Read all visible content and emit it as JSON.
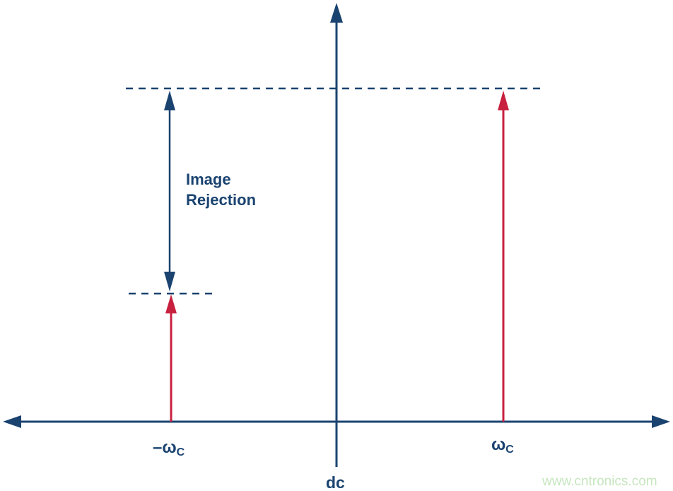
{
  "labels": {
    "image_rejection_line1": "Image",
    "image_rejection_line2": "Rejection",
    "neg_wc_main": "–ω",
    "neg_wc_sub": "C",
    "wc_main": "ω",
    "wc_sub": "C",
    "dc": "dc"
  },
  "watermark": "www.cntronics.com",
  "colors": {
    "axis": "#1a4370",
    "tone": "#c8203f",
    "watermark": "#c6e6bf"
  }
}
